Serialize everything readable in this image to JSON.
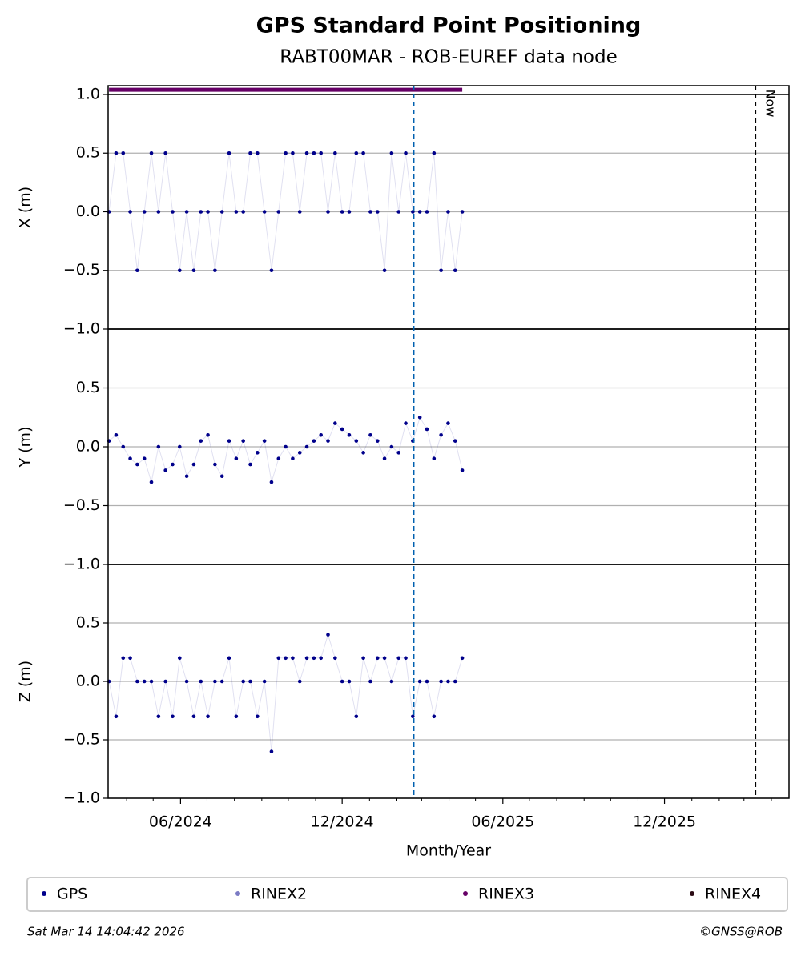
{
  "chart_data": {
    "type": "scatter",
    "title": "GPS Standard Point Positioning",
    "subtitle": "RABT00MAR - ROB-EUREF data node",
    "xlabel": "Month/Year",
    "xlim": [
      "2024-03-11",
      "2026-04-21"
    ],
    "xticks": [
      {
        "value": "2024-06-01",
        "label": "06/2024"
      },
      {
        "value": "2024-12-01",
        "label": "12/2024"
      },
      {
        "value": "2025-06-01",
        "label": "06/2025"
      },
      {
        "value": "2025-12-01",
        "label": "12/2025"
      }
    ],
    "xminorticks": [
      "2024-04-01",
      "2024-05-01",
      "2024-07-01",
      "2024-08-01",
      "2024-09-01",
      "2024-10-01",
      "2024-11-01",
      "2025-01-01",
      "2025-02-01",
      "2025-03-01",
      "2025-04-01",
      "2025-05-01",
      "2025-07-01",
      "2025-08-01",
      "2025-09-01",
      "2025-10-01",
      "2025-11-01",
      "2026-01-01",
      "2026-02-01",
      "2026-03-01",
      "2026-04-01"
    ],
    "grid": true,
    "x": [
      "2024-03-12",
      "2024-03-20",
      "2024-03-28",
      "2024-04-05",
      "2024-04-13",
      "2024-04-21",
      "2024-04-29",
      "2024-05-07",
      "2024-05-15",
      "2024-05-23",
      "2024-05-31",
      "2024-06-08",
      "2024-06-16",
      "2024-06-24",
      "2024-07-02",
      "2024-07-10",
      "2024-07-18",
      "2024-07-26",
      "2024-08-03",
      "2024-08-11",
      "2024-08-19",
      "2024-08-27",
      "2024-09-04",
      "2024-09-12",
      "2024-09-20",
      "2024-09-28",
      "2024-10-06",
      "2024-10-14",
      "2024-10-22",
      "2024-10-30",
      "2024-11-07",
      "2024-11-15",
      "2024-11-23",
      "2024-12-01",
      "2024-12-09",
      "2024-12-17",
      "2024-12-25",
      "2025-01-02",
      "2025-01-10",
      "2025-01-18",
      "2025-01-26",
      "2025-02-03",
      "2025-02-11",
      "2025-02-19",
      "2025-02-27",
      "2025-03-07",
      "2025-03-15",
      "2025-03-23",
      "2025-03-31",
      "2025-04-08",
      "2025-04-16"
    ],
    "series": [
      {
        "name": "GPS",
        "color": "#00008b"
      },
      {
        "name": "RINEX2",
        "color": "#7b7bc4"
      },
      {
        "name": "RINEX3",
        "color": "#660066",
        "start": "2024-03-12",
        "end": "2025-04-16",
        "y": 1.04
      },
      {
        "name": "RINEX4",
        "color": "#2a0a14"
      }
    ],
    "panels": [
      {
        "ylabel": "X (m)",
        "ylim": [
          -1,
          1.075
        ],
        "hlines": [
          1
        ],
        "yticks": [
          {
            "value": -1,
            "label": "−1.0"
          },
          {
            "value": -0.5,
            "label": "−0.5"
          },
          {
            "value": 0,
            "label": "0.0"
          },
          {
            "value": 0.5,
            "label": "0.5"
          },
          {
            "value": 1,
            "label": "1.0"
          }
        ],
        "values": [
          0,
          0.5,
          0.5,
          0,
          -0.5,
          0,
          0.5,
          0,
          0.5,
          0,
          -0.5,
          0,
          -0.5,
          0,
          0,
          -0.5,
          0,
          0.5,
          0,
          0,
          0.5,
          0.5,
          0,
          -0.5,
          0,
          0.5,
          0.5,
          0,
          0.5,
          0.5,
          0.5,
          0,
          0.5,
          0,
          0,
          0.5,
          0.5,
          0,
          0,
          -0.5,
          0.5,
          0,
          0.5,
          0,
          0,
          0,
          0.5,
          -0.5,
          0,
          -0.5,
          0
        ]
      },
      {
        "ylabel": "Y (m)",
        "ylim": [
          -1,
          1
        ],
        "yticks": [
          {
            "value": -1,
            "label": "−1.0"
          },
          {
            "value": -0.5,
            "label": "−0.5"
          },
          {
            "value": 0,
            "label": "0.0"
          },
          {
            "value": 0.5,
            "label": "0.5"
          }
        ],
        "values": [
          0.05,
          0.1,
          0,
          -0.1,
          -0.15,
          -0.1,
          -0.3,
          0,
          -0.2,
          -0.15,
          0,
          -0.25,
          -0.15,
          0.05,
          0.1,
          -0.15,
          -0.25,
          0.05,
          -0.1,
          0.05,
          -0.15,
          -0.05,
          0.05,
          -0.3,
          -0.1,
          0,
          -0.1,
          -0.05,
          0,
          0.05,
          0.1,
          0.05,
          0.2,
          0.15,
          0.1,
          0.05,
          -0.05,
          0.1,
          0.05,
          -0.1,
          0,
          -0.05,
          0.2,
          0.05,
          0.25,
          0.15,
          -0.1,
          0.1,
          0.2,
          0.05,
          -0.2
        ]
      },
      {
        "ylabel": "Z (m)",
        "ylim": [
          -1,
          1
        ],
        "yticks": [
          {
            "value": -1,
            "label": "−1.0"
          },
          {
            "value": -0.5,
            "label": "−0.5"
          },
          {
            "value": 0,
            "label": "0.0"
          },
          {
            "value": 0.5,
            "label": "0.5"
          }
        ],
        "values": [
          0,
          -0.3,
          0.2,
          0.2,
          0,
          0,
          0,
          -0.3,
          0,
          -0.3,
          0.2,
          0,
          -0.3,
          0,
          -0.3,
          0,
          0,
          0.2,
          -0.3,
          0,
          0,
          -0.3,
          0,
          -0.6,
          0.2,
          0.2,
          0.2,
          0,
          0.2,
          0.2,
          0.2,
          0.4,
          0.2,
          0,
          0,
          -0.3,
          0.2,
          0,
          0.2,
          0.2,
          0,
          0.2,
          0.2,
          -0.3,
          0,
          0,
          -0.3,
          0,
          0,
          0,
          0.2
        ]
      }
    ],
    "vlines": [
      {
        "x": "2025-02-20",
        "color": "#0060b0"
      },
      {
        "x": "2026-03-14",
        "color": "#000000",
        "label": "Now"
      }
    ],
    "timestamp": "Sat Mar 14 14:04:42 2026",
    "credit": "©GNSS@ROB"
  }
}
